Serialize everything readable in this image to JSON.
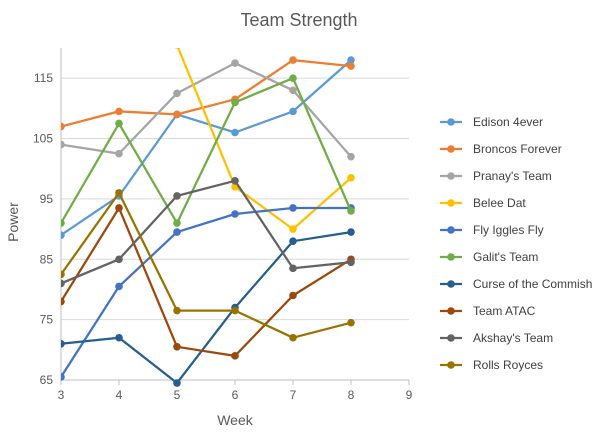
{
  "chart_data": {
    "type": "line",
    "title": "Team Strength",
    "xlabel": "Week",
    "ylabel": "Power",
    "xlim": [
      3,
      9
    ],
    "ylim": [
      65,
      120
    ],
    "xticks": [
      3,
      4,
      5,
      6,
      7,
      8,
      9
    ],
    "yticks": [
      65,
      75,
      85,
      95,
      105,
      115
    ],
    "grid": "horizontal",
    "legend_position": "right",
    "series": [
      {
        "name": "Edison 4ever",
        "color": "#5B9BD5",
        "points": [
          [
            3,
            89
          ],
          [
            4,
            95.5
          ],
          [
            5,
            109
          ],
          [
            6,
            106
          ],
          [
            7,
            109.5
          ],
          [
            8,
            118
          ]
        ]
      },
      {
        "name": "Broncos Forever",
        "color": "#ED7D31",
        "points": [
          [
            3,
            107
          ],
          [
            4,
            109.5
          ],
          [
            5,
            109
          ],
          [
            6,
            111.5
          ],
          [
            7,
            118
          ],
          [
            8,
            117
          ]
        ]
      },
      {
        "name": "Pranay's Team",
        "color": "#A5A5A5",
        "points": [
          [
            3,
            104
          ],
          [
            4,
            102.5
          ],
          [
            5,
            112.5
          ],
          [
            6,
            117.5
          ],
          [
            7,
            113
          ],
          [
            8,
            102
          ]
        ]
      },
      {
        "name": "Belee Dat",
        "color": "#FFC000",
        "points": [
          [
            5,
            120.5
          ],
          [
            6,
            97
          ],
          [
            7,
            90
          ],
          [
            8,
            98.5
          ]
        ]
      },
      {
        "name": "Fly Iggles Fly",
        "color": "#4472C4",
        "points": [
          [
            3,
            65.5
          ],
          [
            4,
            80.5
          ],
          [
            5,
            89.5
          ],
          [
            6,
            92.5
          ],
          [
            7,
            93.5
          ],
          [
            8,
            93.5
          ]
        ]
      },
      {
        "name": "Galit's Team",
        "color": "#70AD47",
        "points": [
          [
            3,
            91
          ],
          [
            4,
            107.5
          ],
          [
            5,
            91
          ],
          [
            6,
            111
          ],
          [
            7,
            115
          ],
          [
            8,
            93
          ]
        ]
      },
      {
        "name": "Curse of the Commish",
        "color": "#255E91",
        "points": [
          [
            3,
            71
          ],
          [
            4,
            72
          ],
          [
            5,
            64.5
          ],
          [
            6,
            77
          ],
          [
            7,
            88
          ],
          [
            8,
            89.5
          ]
        ]
      },
      {
        "name": "Team ATAC",
        "color": "#9E480E",
        "points": [
          [
            3,
            78
          ],
          [
            4,
            93.5
          ],
          [
            5,
            70.5
          ],
          [
            6,
            69
          ],
          [
            7,
            79
          ],
          [
            8,
            85
          ]
        ]
      },
      {
        "name": "Akshay's Team",
        "color": "#636363",
        "points": [
          [
            3,
            81
          ],
          [
            4,
            85
          ],
          [
            5,
            95.5
          ],
          [
            6,
            98
          ],
          [
            7,
            83.5
          ],
          [
            8,
            84.5
          ]
        ]
      },
      {
        "name": "Rolls Royces",
        "color": "#997300",
        "points": [
          [
            3,
            82.5
          ],
          [
            4,
            96
          ],
          [
            5,
            76.5
          ],
          [
            6,
            76.5
          ],
          [
            7,
            72
          ],
          [
            8,
            74.5
          ]
        ]
      }
    ]
  }
}
